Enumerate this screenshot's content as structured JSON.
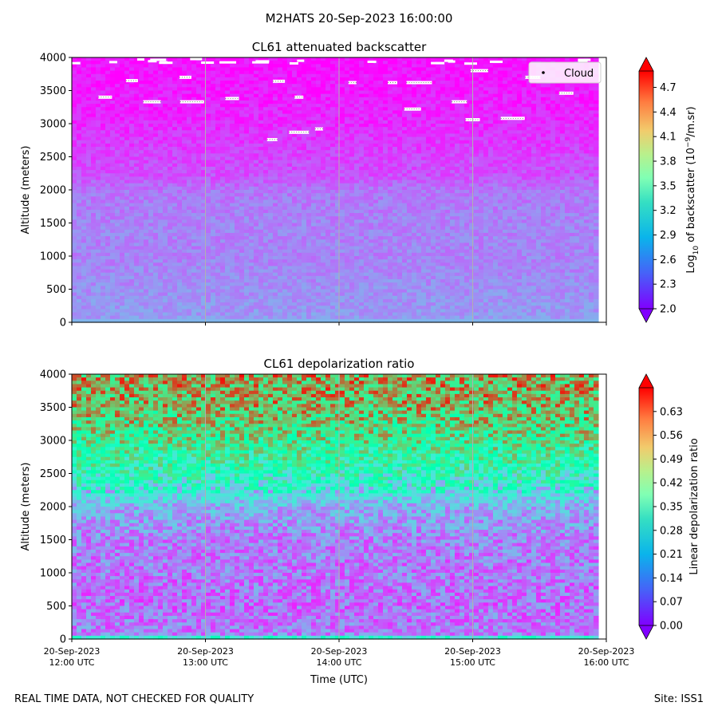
{
  "suptitle": "M2HATS 20-Sep-2023 16:00:00",
  "footer": {
    "quality_note": "REAL TIME DATA, NOT CHECKED FOR QUALITY",
    "site": "Site: ISS1"
  },
  "x_axis": {
    "label": "Time (UTC)",
    "ticks": [
      {
        "date": "20-Sep-2023",
        "time": "12:00 UTC"
      },
      {
        "date": "20-Sep-2023",
        "time": "13:00 UTC"
      },
      {
        "date": "20-Sep-2023",
        "time": "14:00 UTC"
      },
      {
        "date": "20-Sep-2023",
        "time": "15:00 UTC"
      },
      {
        "date": "20-Sep-2023",
        "time": "16:00 UTC"
      }
    ]
  },
  "chart_data": [
    {
      "type": "heatmap",
      "title": "CL61 attenuated backscatter",
      "ylabel": "Altitude (meters)",
      "xlabel": "",
      "x_range": [
        "2023-09-20 12:00 UTC",
        "2023-09-20 16:00 UTC"
      ],
      "ylim": [
        0,
        4000
      ],
      "yticks": [
        0,
        500,
        1000,
        1500,
        2000,
        2500,
        3000,
        3500,
        4000
      ],
      "grid": "vertical lines at hourly ticks",
      "colorbar": {
        "label_main": "Log",
        "label_sub": "10",
        "label_rest": " of backscatter (10",
        "label_exp": "−9",
        "label_end": "/m.sr)",
        "range": [
          2.0,
          4.9
        ],
        "ticks": [
          "2.0",
          "2.3",
          "2.6",
          "2.9",
          "3.2",
          "3.5",
          "3.8",
          "4.1",
          "4.4",
          "4.7"
        ],
        "colormap": "rainbow",
        "extend": "both"
      },
      "legend": {
        "entries": [
          "Cloud"
        ],
        "placement": "top-right"
      },
      "profile_by_altitude": [
        {
          "altitude": 0,
          "value": 2.85
        },
        {
          "altitude": 50,
          "value": 2.6
        },
        {
          "altitude": 500,
          "value": 2.55
        },
        {
          "altitude": 1000,
          "value": 2.5
        },
        {
          "altitude": 1500,
          "value": 2.5
        },
        {
          "altitude": 2000,
          "value": 2.45
        },
        {
          "altitude": 2200,
          "value": 2.3
        },
        {
          "altitude": 2500,
          "value": 2.25
        },
        {
          "altitude": 3000,
          "value": 2.15
        },
        {
          "altitude": 3500,
          "value": 2.1
        },
        {
          "altitude": 4000,
          "value": 2.05
        }
      ],
      "cloud_detections": [
        {
          "time_h": 0.25,
          "altitude": 3400
        },
        {
          "time_h": 0.45,
          "altitude": 3650
        },
        {
          "time_h": 0.6,
          "altitude": 3330
        },
        {
          "time_h": 0.85,
          "altitude": 3700
        },
        {
          "time_h": 0.9,
          "altitude": 3330
        },
        {
          "time_h": 1.2,
          "altitude": 3380
        },
        {
          "time_h": 1.5,
          "altitude": 2760
        },
        {
          "time_h": 1.55,
          "altitude": 3640
        },
        {
          "time_h": 1.7,
          "altitude": 3400
        },
        {
          "time_h": 1.7,
          "altitude": 2870
        },
        {
          "time_h": 1.85,
          "altitude": 2920
        },
        {
          "time_h": 2.1,
          "altitude": 3620
        },
        {
          "time_h": 2.4,
          "altitude": 3620
        },
        {
          "time_h": 2.55,
          "altitude": 3220
        },
        {
          "time_h": 2.6,
          "altitude": 3620
        },
        {
          "time_h": 2.9,
          "altitude": 3330
        },
        {
          "time_h": 3.05,
          "altitude": 3800
        },
        {
          "time_h": 3.0,
          "altitude": 3060
        },
        {
          "time_h": 3.3,
          "altitude": 3080
        },
        {
          "time_h": 3.45,
          "altitude": 3700
        },
        {
          "time_h": 3.7,
          "altitude": 3460
        }
      ]
    },
    {
      "type": "heatmap",
      "title": "CL61 depolarization ratio",
      "ylabel": "Altitude (meters)",
      "xlabel": "Time (UTC)",
      "x_range": [
        "2023-09-20 12:00 UTC",
        "2023-09-20 16:00 UTC"
      ],
      "ylim": [
        0,
        4000
      ],
      "yticks": [
        0,
        500,
        1000,
        1500,
        2000,
        2500,
        3000,
        3500,
        4000
      ],
      "grid": "vertical lines at hourly ticks",
      "colorbar": {
        "label": "Linear depolarization ratio",
        "range": [
          0.0,
          0.7
        ],
        "ticks": [
          "0.00",
          "0.07",
          "0.14",
          "0.21",
          "0.28",
          "0.35",
          "0.42",
          "0.49",
          "0.56",
          "0.63"
        ],
        "colormap": "rainbow",
        "extend": "both"
      },
      "profile_by_altitude": [
        {
          "altitude": 0,
          "value": 0.42
        },
        {
          "altitude": 50,
          "value": 0.12
        },
        {
          "altitude": 500,
          "value": 0.1
        },
        {
          "altitude": 1000,
          "value": 0.11
        },
        {
          "altitude": 1500,
          "value": 0.12
        },
        {
          "altitude": 2000,
          "value": 0.17
        },
        {
          "altitude": 2300,
          "value": 0.28
        },
        {
          "altitude": 2600,
          "value": 0.36
        },
        {
          "altitude": 3000,
          "value": 0.44
        },
        {
          "altitude": 3500,
          "value": 0.52
        },
        {
          "altitude": 4000,
          "value": 0.55
        }
      ]
    }
  ]
}
